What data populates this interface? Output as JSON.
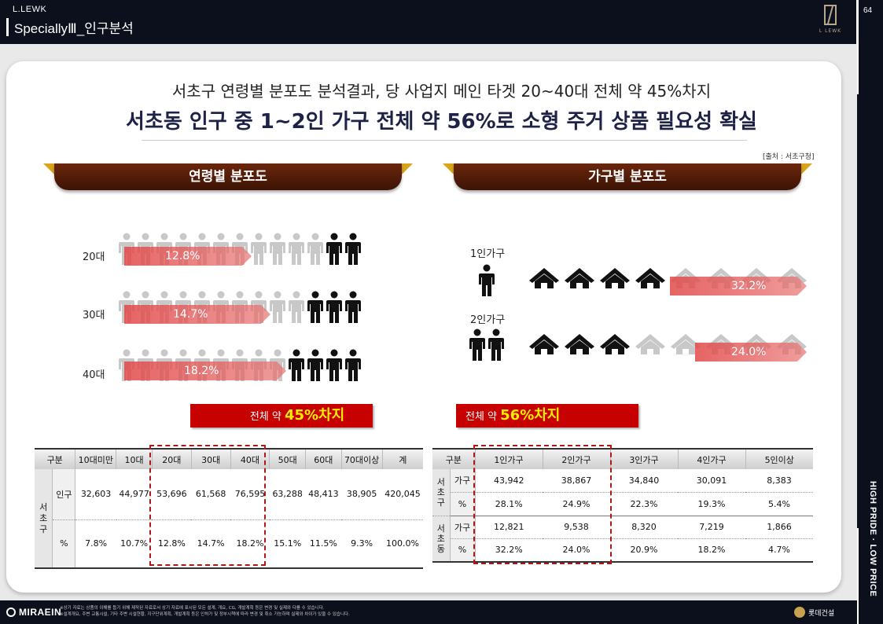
{
  "header": {
    "brand": "L.LEWK",
    "section": "SpeciallyⅢ_인구분석",
    "logo_text": "L LEWK"
  },
  "page_number": "64",
  "side_tag": "HIGH PRIDE · LOW PRICE",
  "subtitle": "서초구 연령별 분포도 분석결과, 당 사업지 메인 타겟 20~40대 전체 약 45%차지",
  "headline": "서초동 인구 중 1~2인 가구 전체 약 56%로 소형 주거 상품 필요성 확실",
  "source": "[출처 : 서초구청]",
  "age_panel": {
    "title": "연령별 분포도",
    "rows": [
      {
        "label": "20대",
        "percent": "12.8%",
        "value": 12.8
      },
      {
        "label": "30대",
        "percent": "14.7%",
        "value": 14.7
      },
      {
        "label": "40대",
        "percent": "18.2%",
        "value": 18.2
      }
    ],
    "total_prefix": "전체 약 ",
    "total_value": "45%차지"
  },
  "household_panel": {
    "title": "가구별 분포도",
    "rows": [
      {
        "label": "1인가구",
        "percent": "32.2%",
        "value": 32.2
      },
      {
        "label": "2인가구",
        "percent": "24.0%",
        "value": 24.0
      }
    ],
    "total_prefix": "전체 약 ",
    "total_value": "56%차지"
  },
  "age_table": {
    "headers": [
      "구분",
      "10대미만",
      "10대",
      "20대",
      "30대",
      "40대",
      "50대",
      "60대",
      "70대이상",
      "계"
    ],
    "region": "서초구",
    "rows": [
      {
        "label": "인구",
        "values": [
          "32,603",
          "44,977",
          "53,696",
          "61,568",
          "76,595",
          "63,288",
          "48,413",
          "38,905",
          "420,045"
        ]
      },
      {
        "label": "%",
        "values": [
          "7.8%",
          "10.7%",
          "12.8%",
          "14.7%",
          "18.2%",
          "15.1%",
          "11.5%",
          "9.3%",
          "100.0%"
        ]
      }
    ]
  },
  "household_table": {
    "headers": [
      "구분",
      "1인가구",
      "2인가구",
      "3인가구",
      "4인가구",
      "5인이상"
    ],
    "groups": [
      {
        "region": "서초구",
        "rows": [
          {
            "label": "가구",
            "values": [
              "43,942",
              "38,867",
              "34,840",
              "30,091",
              "8,383"
            ]
          },
          {
            "label": "%",
            "values": [
              "28.1%",
              "24.9%",
              "22.3%",
              "19.3%",
              "5.4%"
            ]
          }
        ]
      },
      {
        "region": "서초동",
        "rows": [
          {
            "label": "가구",
            "values": [
              "12,821",
              "9,538",
              "8,320",
              "7,219",
              "1,866"
            ]
          },
          {
            "label": "%",
            "values": [
              "32.2%",
              "24.0%",
              "20.9%",
              "18.2%",
              "4.7%"
            ]
          }
        ]
      }
    ]
  },
  "footer": {
    "mirae": "MIRAEIN",
    "disclaimer_1": "※상기 자료는 상품의 이해를 돕기 위해 제작된 자료로서 상기 자료에 표시된 모든 설계, 개요, CG, 개발계획 등은 변경 및 실제와 다를 수 있습니다.",
    "disclaimer_2": "※설계개요, 주변 교통시설, 기타 주변 시설현황, 지구단위계획, 개발계획 등은 인허가 및 정부시책에 따라 변경 및 취소 가능하며 실제와 차이가 있을 수 있습니다.",
    "lotte": "롯데건설"
  },
  "colors": {
    "navy": "#0c0f1c",
    "brown": "#5a1f08",
    "gold": "#d7a41a",
    "red": "#c70000",
    "highlight": "#ffec00"
  }
}
